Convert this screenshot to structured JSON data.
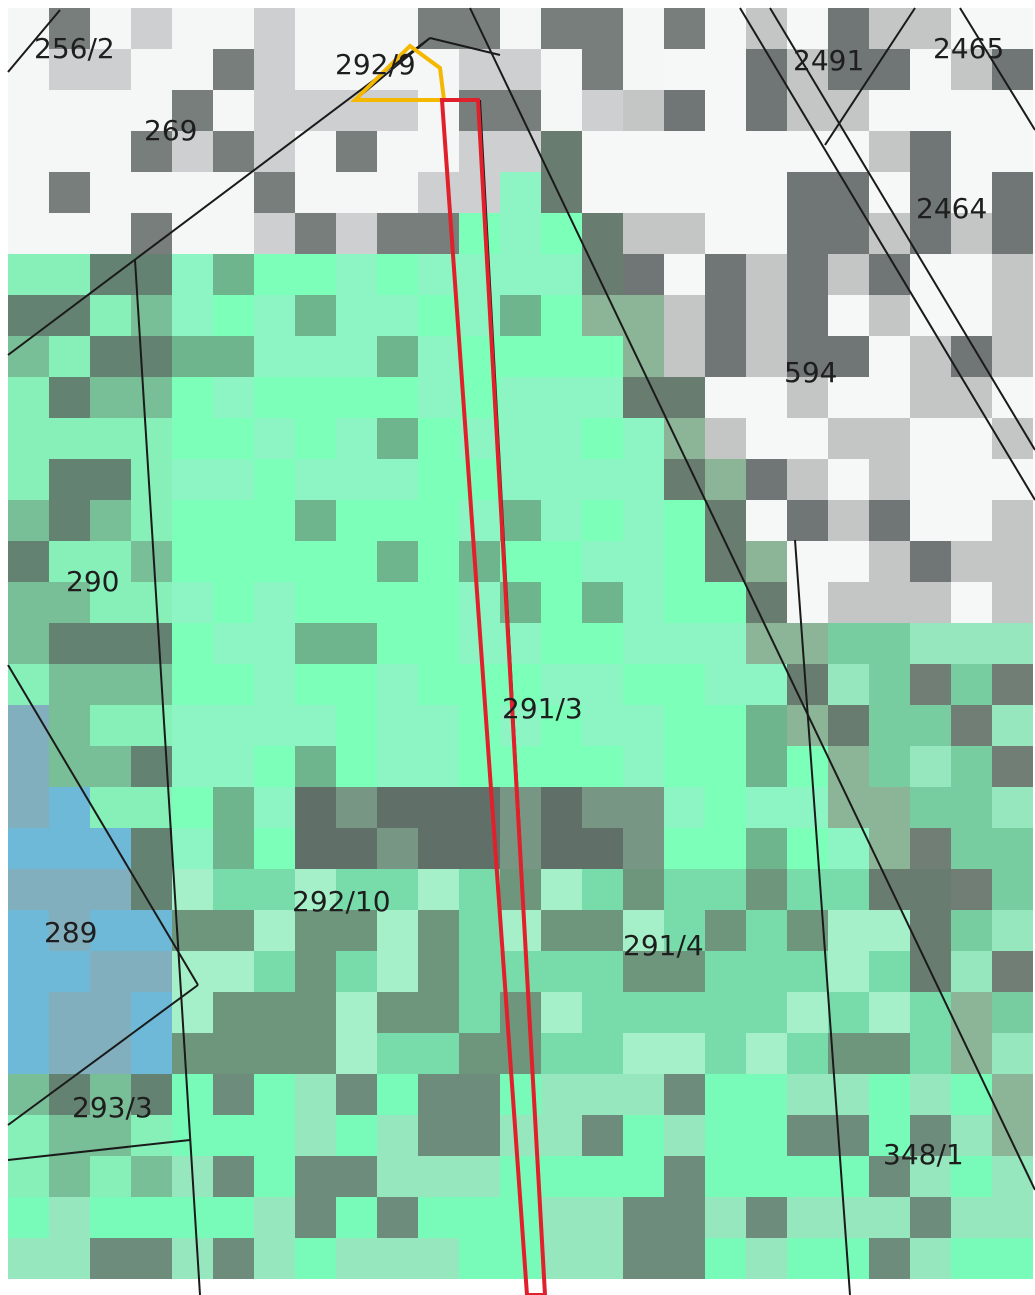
{
  "map": {
    "parcel_labels": [
      {
        "id": "256-2",
        "text": "256/2"
      },
      {
        "id": "292-9",
        "text": "292/9"
      },
      {
        "id": "2491",
        "text": "2491"
      },
      {
        "id": "2465",
        "text": "2465"
      },
      {
        "id": "269",
        "text": "269"
      },
      {
        "id": "2464",
        "text": "2464"
      },
      {
        "id": "594",
        "text": "594"
      },
      {
        "id": "290",
        "text": "290"
      },
      {
        "id": "291-3",
        "text": "291/3"
      },
      {
        "id": "292-10",
        "text": "292/10"
      },
      {
        "id": "289",
        "text": "289"
      },
      {
        "id": "291-4",
        "text": "291/4"
      },
      {
        "id": "293-3",
        "text": "293/3"
      },
      {
        "id": "348-1",
        "text": "348/1"
      }
    ],
    "colors": {
      "boundary_line": "#1a1a1a",
      "highlight_strip": "#e0202a",
      "highlight_triangle": "#f5b800",
      "vegetation": "#7cffb8",
      "water": "#70b8d8",
      "built_up": "#ffffff"
    }
  }
}
